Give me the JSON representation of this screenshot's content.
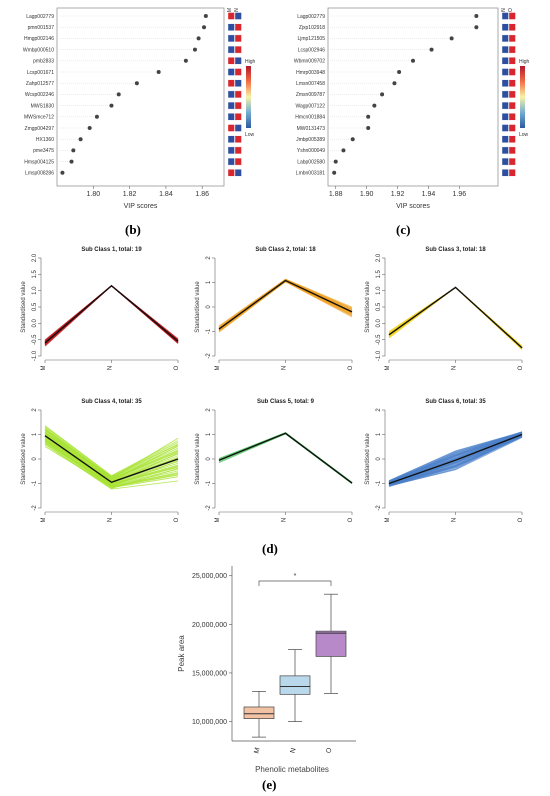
{
  "panel_labels": {
    "b": "(b)",
    "c": "(c)",
    "d": "(d)",
    "e": "(e)"
  },
  "chart_data": [
    {
      "id": "b",
      "type": "scatter",
      "xlabel": "VIP scores",
      "xlim": [
        1.78,
        1.872
      ],
      "xticks": [
        "1.80",
        "1.82",
        "1.84",
        "1.86"
      ],
      "xtick_values": [
        1.8,
        1.82,
        1.84,
        1.86
      ],
      "heat_columns": [
        "M",
        "N"
      ],
      "legend": {
        "high": "High",
        "low": "Low",
        "colors": [
          "#b2182b",
          "#f7f3a8",
          "#2c5aa0"
        ]
      },
      "points": [
        {
          "label": "Lagp002779",
          "value": 1.862,
          "cells": [
            "#d7262d",
            "#2f4ea0"
          ]
        },
        {
          "label": "pmn001537",
          "value": 1.861,
          "cells": [
            "#2f4ea0",
            "#d7262d"
          ]
        },
        {
          "label": "Hmgp002146",
          "value": 1.858,
          "cells": [
            "#2f4ea0",
            "#d7262d"
          ]
        },
        {
          "label": "Wmbp000510",
          "value": 1.856,
          "cells": [
            "#2f4ea0",
            "#d7262d"
          ]
        },
        {
          "label": "pmb2833",
          "value": 1.851,
          "cells": [
            "#d7262d",
            "#2f4ea0"
          ]
        },
        {
          "label": "Lcsp001671",
          "value": 1.836,
          "cells": [
            "#2f4ea0",
            "#d7262d"
          ]
        },
        {
          "label": "Zahp012577",
          "value": 1.824,
          "cells": [
            "#d7262d",
            "#2f4ea0"
          ]
        },
        {
          "label": "Wcsp002246",
          "value": 1.814,
          "cells": [
            "#2f4ea0",
            "#d7262d"
          ]
        },
        {
          "label": "MWS1830",
          "value": 1.81,
          "cells": [
            "#2f4ea0",
            "#d7262d"
          ]
        },
        {
          "label": "MWSmce712",
          "value": 1.802,
          "cells": [
            "#2f4ea0",
            "#d7262d"
          ]
        },
        {
          "label": "Zmgp004297",
          "value": 1.798,
          "cells": [
            "#d7262d",
            "#2f4ea0"
          ]
        },
        {
          "label": "HX1360",
          "value": 1.793,
          "cells": [
            "#2f4ea0",
            "#d7262d"
          ]
        },
        {
          "label": "pme3475",
          "value": 1.789,
          "cells": [
            "#2f4ea0",
            "#d7262d"
          ]
        },
        {
          "label": "Hmsp004125",
          "value": 1.788,
          "cells": [
            "#2f4ea0",
            "#d7262d"
          ]
        },
        {
          "label": "Lmsp008286",
          "value": 1.783,
          "cells": [
            "#d7262d",
            "#2f4ea0"
          ]
        }
      ]
    },
    {
      "id": "c",
      "type": "scatter",
      "xlabel": "VIP scores",
      "xlim": [
        1.875,
        1.985
      ],
      "xticks": [
        "1.88",
        "1.90",
        "1.92",
        "1.94",
        "1.96"
      ],
      "xtick_values": [
        1.88,
        1.9,
        1.92,
        1.94,
        1.96
      ],
      "heat_columns": [
        "N",
        "O"
      ],
      "legend": {
        "high": "High",
        "low": "Low",
        "colors": [
          "#b2182b",
          "#f7f3a8",
          "#2c5aa0"
        ]
      },
      "points": [
        {
          "label": "Lagp002779",
          "value": 1.971,
          "cells": [
            "#2f4ea0",
            "#d7262d"
          ]
        },
        {
          "label": "Zjxp102918",
          "value": 1.971,
          "cells": [
            "#2f4ea0",
            "#d7262d"
          ]
        },
        {
          "label": "Ljmp121505",
          "value": 1.955,
          "cells": [
            "#2f4ea0",
            "#d7262d"
          ]
        },
        {
          "label": "Lcsp002946",
          "value": 1.942,
          "cells": [
            "#2f4ea0",
            "#d7262d"
          ]
        },
        {
          "label": "Wbmn009702",
          "value": 1.93,
          "cells": [
            "#2f4ea0",
            "#d7262d"
          ]
        },
        {
          "label": "Hmrp003948",
          "value": 1.921,
          "cells": [
            "#2f4ea0",
            "#d7262d"
          ]
        },
        {
          "label": "Lmsn007458",
          "value": 1.918,
          "cells": [
            "#2f4ea0",
            "#d7262d"
          ]
        },
        {
          "label": "Zmsn009787",
          "value": 1.91,
          "cells": [
            "#2f4ea0",
            "#d7262d"
          ]
        },
        {
          "label": "Wagp007122",
          "value": 1.905,
          "cells": [
            "#2f4ea0",
            "#d7262d"
          ]
        },
        {
          "label": "Hmcn001884",
          "value": 1.901,
          "cells": [
            "#2f4ea0",
            "#d7262d"
          ]
        },
        {
          "label": "MW0131473",
          "value": 1.901,
          "cells": [
            "#2f4ea0",
            "#d7262d"
          ]
        },
        {
          "label": "Jmbp005389",
          "value": 1.891,
          "cells": [
            "#2f4ea0",
            "#d7262d"
          ]
        },
        {
          "label": "Yshn000049",
          "value": 1.885,
          "cells": [
            "#2f4ea0",
            "#d7262d"
          ]
        },
        {
          "label": "Labp002580",
          "value": 1.88,
          "cells": [
            "#2f4ea0",
            "#d7262d"
          ]
        },
        {
          "label": "Lmbn003181",
          "value": 1.879,
          "cells": [
            "#2f4ea0",
            "#d7262d"
          ]
        }
      ]
    },
    {
      "id": "d",
      "type": "line",
      "xlabel": "",
      "ylabel": "Standardised value",
      "x": [
        "M",
        "N",
        "O"
      ],
      "subplots": [
        {
          "title": "Sub Class 1, total: 19",
          "ylim": [
            -1.0,
            2.0
          ],
          "yticks": [
            "-1.0",
            "-0.5",
            "0.0",
            "0.5",
            "1.0",
            "1.5",
            "2.0"
          ],
          "ytick_values": [
            -1.0,
            -0.5,
            0.0,
            0.5,
            1.0,
            1.5,
            2.0
          ],
          "color": "#c0181e",
          "mean": [
            -0.6,
            1.15,
            -0.55
          ],
          "spread": [
            0.08,
            0.0,
            0.06
          ],
          "count": 19
        },
        {
          "title": "Sub Class 2, total: 18",
          "ylim": [
            -2,
            2
          ],
          "yticks": [
            "-2",
            "-1",
            "0",
            "1",
            "2"
          ],
          "ytick_values": [
            -2,
            -1,
            0,
            1,
            2
          ],
          "color": "#f0a020",
          "mean": [
            -0.9,
            1.08,
            -0.2
          ],
          "spread": [
            0.1,
            0.05,
            0.18
          ],
          "count": 18
        },
        {
          "title": "Sub Class 3, total: 18",
          "ylim": [
            -1.0,
            2.0
          ],
          "yticks": [
            "-1.0",
            "-0.5",
            "0.0",
            "0.5",
            "1.0",
            "1.5",
            "2.0"
          ],
          "ytick_values": [
            -1.0,
            -0.5,
            0.0,
            0.5,
            1.0,
            1.5,
            2.0
          ],
          "color": "#f1d21a",
          "mean": [
            -0.35,
            1.1,
            -0.75
          ],
          "spread": [
            0.08,
            0.0,
            0.05
          ],
          "count": 18
        },
        {
          "title": "Sub Class 4, total: 35",
          "ylim": [
            -2,
            2
          ],
          "yticks": [
            "-2",
            "-1",
            "0",
            "1",
            "2"
          ],
          "ytick_values": [
            -2,
            -1,
            0,
            1,
            2
          ],
          "color": "#a6e22e",
          "mean": [
            0.95,
            -0.95,
            0.0
          ],
          "spread": [
            0.35,
            0.25,
            0.75
          ],
          "count": 35
        },
        {
          "title": "Sub Class 5, total: 9",
          "ylim": [
            -2,
            2
          ],
          "yticks": [
            "-2",
            "-1",
            "0",
            "1",
            "2"
          ],
          "ytick_values": [
            -2,
            -1,
            0,
            1,
            2
          ],
          "color": "#58c46a",
          "mean": [
            -0.05,
            1.05,
            -0.98
          ],
          "spread": [
            0.08,
            0.03,
            0.03
          ],
          "count": 9
        },
        {
          "title": "Sub Class 6, total: 35",
          "ylim": [
            -2,
            2
          ],
          "yticks": [
            "-2",
            "-1",
            "0",
            "1",
            "2"
          ],
          "ytick_values": [
            -2,
            -1,
            0,
            1,
            2
          ],
          "color": "#4a7fc8",
          "mean": [
            -1.0,
            -0.05,
            1.0
          ],
          "spread": [
            0.1,
            0.35,
            0.1
          ],
          "count": 35
        }
      ]
    },
    {
      "id": "e",
      "type": "box",
      "xlabel": "Phenolic metabolites",
      "ylabel": "Peak area",
      "categories": [
        "M",
        "N",
        "O"
      ],
      "ylim": [
        8000000,
        26000000
      ],
      "yticks": [
        "10,000,000",
        "15,000,000",
        "20,000,000",
        "25,000,000"
      ],
      "ytick_values": [
        10000000,
        15000000,
        20000000,
        25000000
      ],
      "significance": "*",
      "boxes": [
        {
          "category": "M",
          "min": 8400000,
          "q1": 10300000,
          "median": 10800000,
          "q3": 11500000,
          "max": 13100000,
          "color": "#f2c2a4"
        },
        {
          "category": "N",
          "min": 10000000,
          "q1": 12800000,
          "median": 13600000,
          "q3": 14700000,
          "max": 17400000,
          "color": "#b9d8ec"
        },
        {
          "category": "O",
          "min": 12900000,
          "q1": 16700000,
          "median": 19100000,
          "q3": 19300000,
          "max": 23100000,
          "color": "#b889c8"
        }
      ]
    }
  ]
}
